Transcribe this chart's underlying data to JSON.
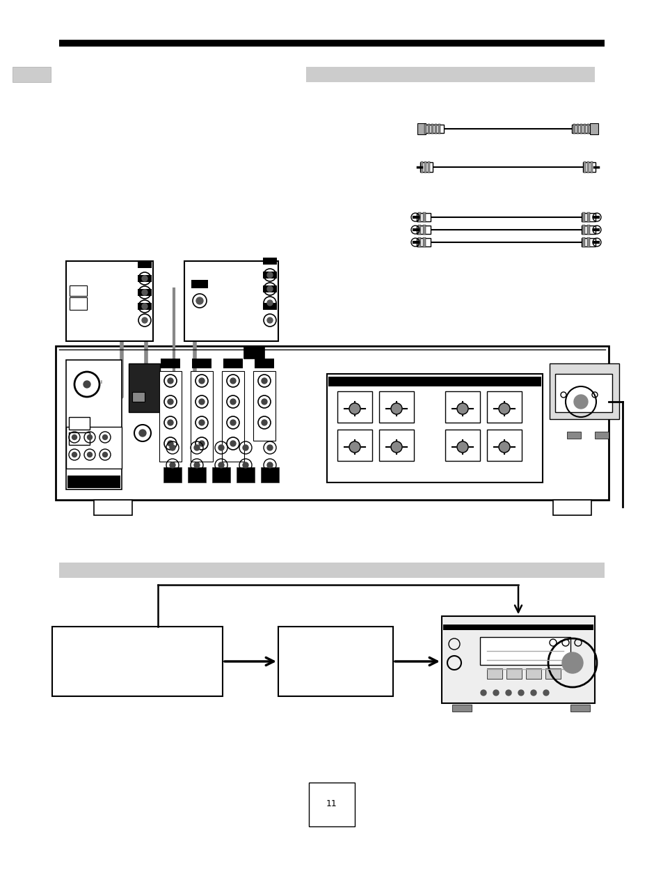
{
  "page_width": 9.54,
  "page_height": 12.74,
  "bg_color": "#ffffff",
  "page_number": "11"
}
